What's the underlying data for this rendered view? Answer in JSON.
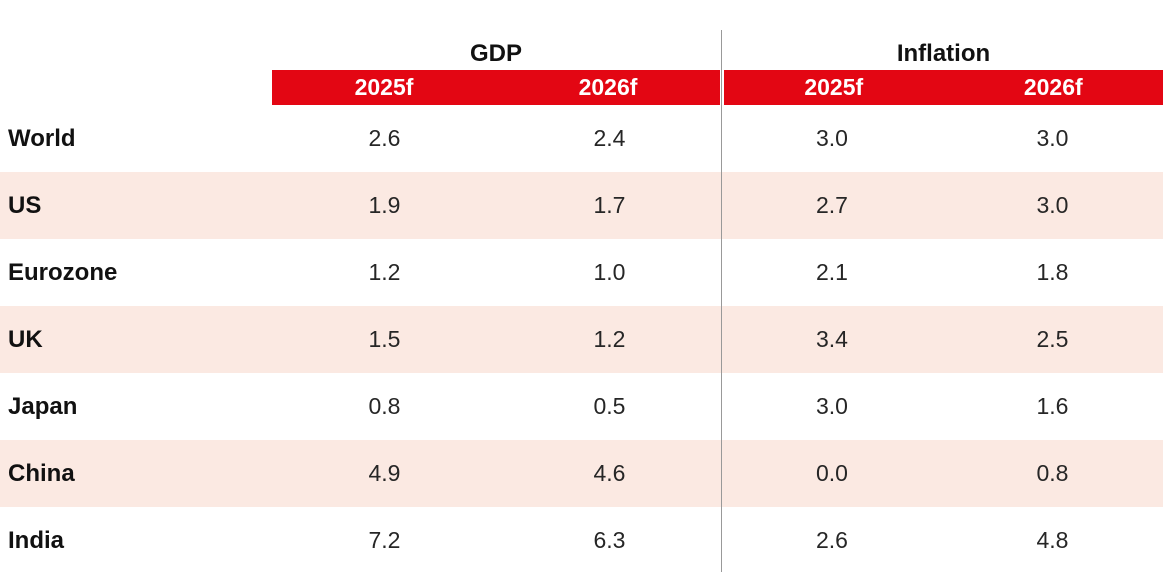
{
  "colors": {
    "accent_red": "#E30613",
    "stripe_pink": "#FBE9E2",
    "divider_gray": "#999999"
  },
  "table": {
    "groups": [
      {
        "label": "GDP"
      },
      {
        "label": "Inflation"
      }
    ],
    "subcolumns": [
      "2025f",
      "2026f",
      "2025f",
      "2026f"
    ],
    "rows": [
      {
        "label": "World",
        "values": [
          "2.6",
          "2.4",
          "3.0",
          "3.0"
        ]
      },
      {
        "label": "US",
        "values": [
          "1.9",
          "1.7",
          "2.7",
          "3.0"
        ]
      },
      {
        "label": "Eurozone",
        "values": [
          "1.2",
          "1.0",
          "2.1",
          "1.8"
        ]
      },
      {
        "label": "UK",
        "values": [
          "1.5",
          "1.2",
          "3.4",
          "2.5"
        ]
      },
      {
        "label": "Japan",
        "values": [
          "0.8",
          "0.5",
          "3.0",
          "1.6"
        ]
      },
      {
        "label": "China",
        "values": [
          "4.9",
          "4.6",
          "0.0",
          "0.8"
        ]
      },
      {
        "label": "India",
        "values": [
          "7.2",
          "6.3",
          "2.6",
          "4.8"
        ]
      }
    ]
  },
  "chart_data": {
    "type": "table",
    "title": "",
    "categories": [
      "World",
      "US",
      "Eurozone",
      "UK",
      "Japan",
      "China",
      "India"
    ],
    "column_groups": [
      "GDP",
      "Inflation"
    ],
    "columns": [
      "GDP 2025f",
      "GDP 2026f",
      "Inflation 2025f",
      "Inflation 2026f"
    ],
    "series": [
      {
        "name": "GDP 2025f",
        "values": [
          2.6,
          1.9,
          1.2,
          1.5,
          0.8,
          4.9,
          7.2
        ]
      },
      {
        "name": "GDP 2026f",
        "values": [
          2.4,
          1.7,
          1.0,
          1.2,
          0.5,
          4.6,
          6.3
        ]
      },
      {
        "name": "Inflation 2025f",
        "values": [
          3.0,
          2.7,
          2.1,
          3.4,
          3.0,
          0.0,
          2.6
        ]
      },
      {
        "name": "Inflation 2026f",
        "values": [
          3.0,
          3.0,
          1.8,
          2.5,
          1.6,
          0.8,
          4.8
        ]
      }
    ],
    "layout": {
      "striped_rows": [
        "US",
        "UK",
        "China"
      ],
      "header_bar_color": "#E30613",
      "stripe_color": "#FBE9E2",
      "section_divider": "vertical gray line between GDP and Inflation"
    }
  }
}
